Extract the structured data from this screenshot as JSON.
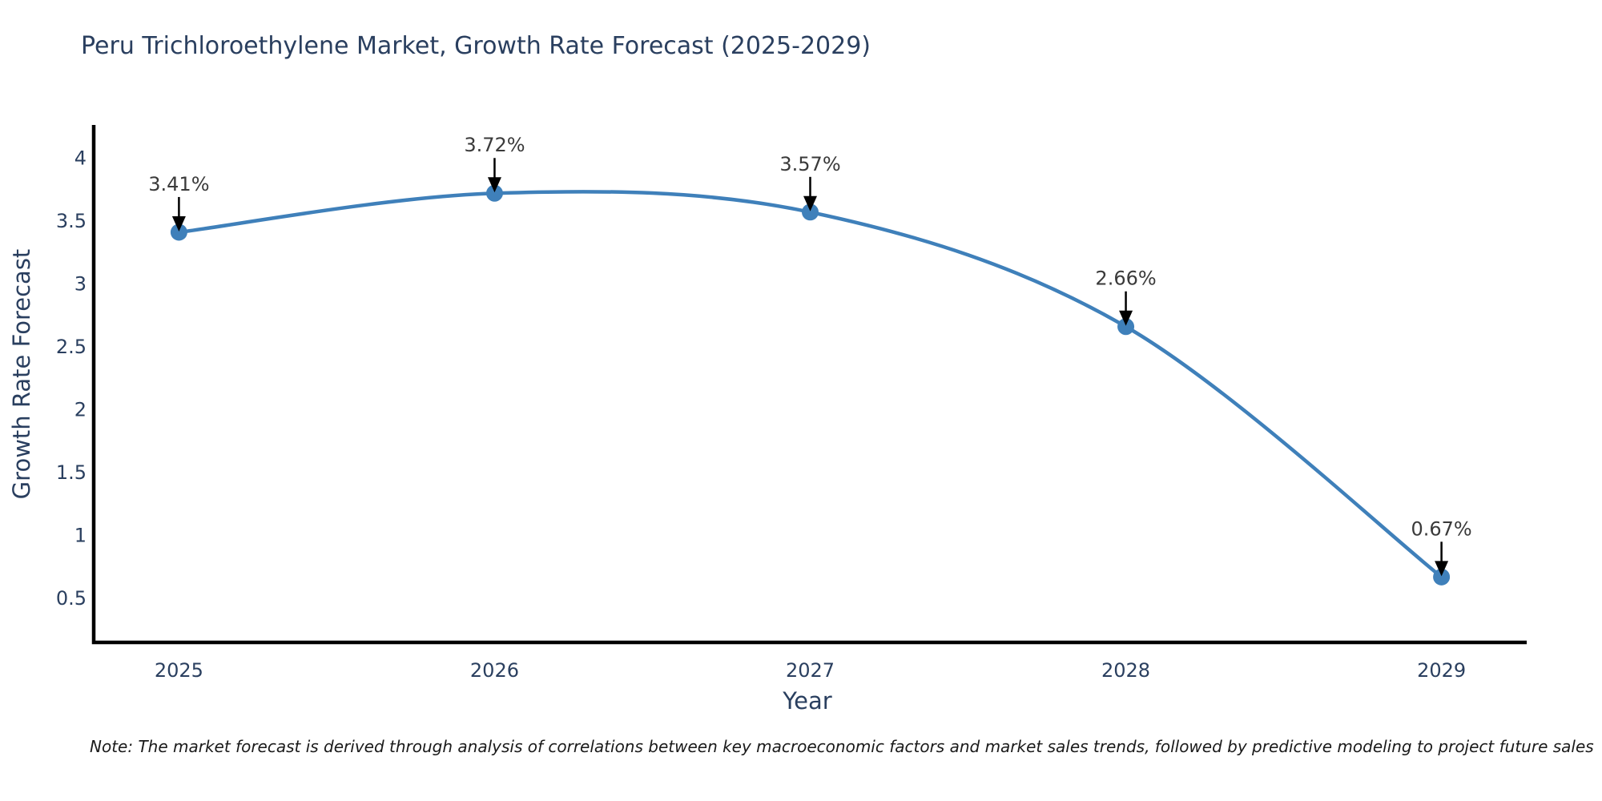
{
  "chart_data": {
    "type": "line",
    "line_shape": "spline",
    "title": "Peru Trichloroethylene Market, Growth Rate Forecast (2025-2029)",
    "xlabel": "Year",
    "ylabel": "Growth Rate Forecast",
    "x": [
      2025,
      2026,
      2027,
      2028,
      2029
    ],
    "y": [
      3.41,
      3.72,
      3.57,
      2.66,
      0.67
    ],
    "point_labels": [
      "3.41%",
      "3.72%",
      "3.57%",
      "2.66%",
      "0.67%"
    ],
    "xticks": [
      2025,
      2026,
      2027,
      2028,
      2029
    ],
    "yticks": [
      0.5,
      1,
      1.5,
      2,
      2.5,
      3,
      3.5,
      4
    ],
    "xlim": [
      2024.73,
      2029.27
    ],
    "ylim": [
      0.15,
      4.25
    ],
    "grid": false,
    "legend": false,
    "annotation_arrows": true,
    "note": "Note: The market forecast is derived through analysis of correlations between key macroeconomic factors and market sales trends, followed by predictive modeling to project future sales",
    "colors": {
      "line": "#3f80ba",
      "marker": "#3f80ba",
      "axis_line": "#000000",
      "tick_text": "#2a3f5f",
      "title_text": "#2a3f5f",
      "annotation_text": "#3a3a3a",
      "arrow": "#000000",
      "background": "#ffffff"
    }
  }
}
